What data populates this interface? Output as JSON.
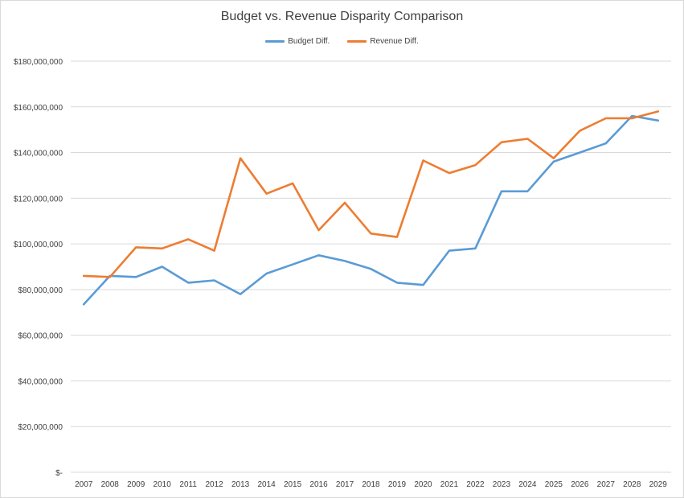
{
  "chart_data": {
    "type": "line",
    "title": "Budget vs. Revenue Disparity Comparison",
    "xlabel": "",
    "ylabel": "",
    "ylim": [
      0,
      180000000
    ],
    "grid": true,
    "legend_position": "top-center",
    "categories": [
      "2007",
      "2008",
      "2009",
      "2010",
      "2011",
      "2012",
      "2013",
      "2014",
      "2015",
      "2016",
      "2017",
      "2018",
      "2019",
      "2020",
      "2021",
      "2022",
      "2023",
      "2024",
      "2025",
      "2026",
      "2027",
      "2028",
      "2029"
    ],
    "y_tick_labels": [
      "$-",
      "$20,000,000",
      "$40,000,000",
      "$60,000,000",
      "$80,000,000",
      "$100,000,000",
      "$120,000,000",
      "$140,000,000",
      "$160,000,000",
      "$180,000,000"
    ],
    "series": [
      {
        "name": "Budget Diff.",
        "color": "#5b9bd5",
        "values": [
          73500000,
          86000000,
          85500000,
          90000000,
          83000000,
          84000000,
          78000000,
          87000000,
          91000000,
          95000000,
          92500000,
          89000000,
          83000000,
          82000000,
          97000000,
          98000000,
          123000000,
          123000000,
          136000000,
          140000000,
          144000000,
          156000000,
          154000000
        ]
      },
      {
        "name": "Revenue Diff.",
        "color": "#ed7d31",
        "values": [
          86000000,
          85500000,
          98500000,
          98000000,
          102000000,
          97000000,
          137500000,
          122000000,
          126500000,
          106000000,
          118000000,
          104500000,
          103000000,
          136500000,
          131000000,
          134500000,
          144500000,
          146000000,
          137500000,
          149500000,
          155000000,
          155000000,
          158000000
        ]
      }
    ]
  }
}
